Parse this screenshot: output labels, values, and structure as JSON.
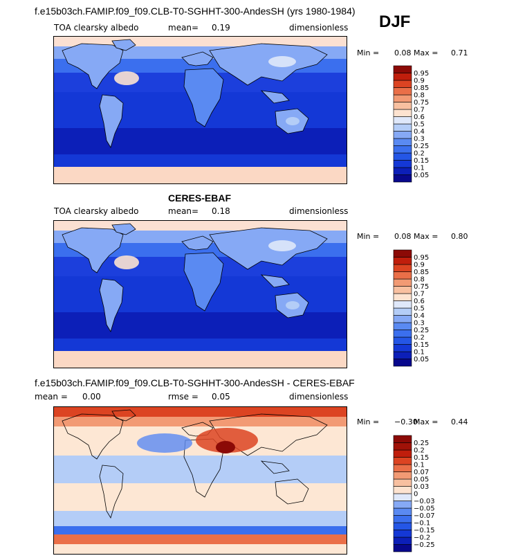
{
  "header": {
    "title": "f.e15b03ch.FAMIP.f09_f09.CLB-T0-SGHHT-300-AndesSH (yrs 1980-1984)",
    "season": "DJF"
  },
  "panels": [
    {
      "title": "",
      "variable": "TOA clearsky albedo",
      "mean_label": "mean=",
      "mean_value": "0.19",
      "units": "dimensionless",
      "min_label": "Min =",
      "min_value": "0.08",
      "max_label": "Max =",
      "max_value": "0.71"
    },
    {
      "title": "CERES-EBAF",
      "variable": "TOA clearsky albedo",
      "mean_label": "mean=",
      "mean_value": "0.18",
      "units": "dimensionless",
      "min_label": "Min =",
      "min_value": "0.08",
      "max_label": "Max =",
      "max_value": "0.80"
    },
    {
      "title": "f.e15b03ch.FAMIP.f09_f09.CLB-T0-SGHHT-300-AndesSH - CERES-EBAF",
      "mean_label": "mean =",
      "mean_value": "0.00",
      "rmse_label": "rmse =",
      "rmse_value": "0.05",
      "units": "dimensionless",
      "min_label": "Min =",
      "min_value": "−0.30",
      "max_label": "Max =",
      "max_value": "0.44"
    }
  ],
  "chart_data": [
    {
      "type": "heatmap",
      "title": "TOA clearsky albedo",
      "units": "dimensionless",
      "mean": 0.19,
      "min": 0.08,
      "max": 0.71,
      "colorbar": {
        "levels": [
          "0.05",
          "0.1",
          "0.15",
          "0.2",
          "0.25",
          "0.3",
          "0.4",
          "0.5",
          "0.6",
          "0.7",
          "0.75",
          "0.8",
          "0.85",
          "0.9",
          "0.95"
        ],
        "colors": [
          "#08088c",
          "#0c1fb8",
          "#1438d6",
          "#2456e6",
          "#3b6fee",
          "#5a8af2",
          "#86a9f5",
          "#b4cdf7",
          "#dfe8fa",
          "#fde3d0",
          "#f8c0a0",
          "#f29a74",
          "#ea6f48",
          "#dc4422",
          "#c01e0c",
          "#8c0a06"
        ]
      }
    },
    {
      "type": "heatmap",
      "title": "CERES-EBAF",
      "units": "dimensionless",
      "mean": 0.18,
      "min": 0.08,
      "max": 0.8,
      "colorbar": {
        "levels": [
          "0.05",
          "0.1",
          "0.15",
          "0.2",
          "0.25",
          "0.3",
          "0.4",
          "0.5",
          "0.6",
          "0.7",
          "0.75",
          "0.8",
          "0.85",
          "0.9",
          "0.95"
        ],
        "colors": [
          "#08088c",
          "#0c1fb8",
          "#1438d6",
          "#2456e6",
          "#3b6fee",
          "#5a8af2",
          "#86a9f5",
          "#b4cdf7",
          "#dfe8fa",
          "#fde3d0",
          "#f8c0a0",
          "#f29a74",
          "#ea6f48",
          "#dc4422",
          "#c01e0c",
          "#8c0a06"
        ]
      }
    },
    {
      "type": "heatmap",
      "title": "f.e15b03ch.FAMIP.f09_f09.CLB-T0-SGHHT-300-AndesSH - CERES-EBAF",
      "units": "dimensionless",
      "mean": 0.0,
      "rmse": 0.05,
      "min": -0.3,
      "max": 0.44,
      "colorbar": {
        "levels": [
          "−0.25",
          "−0.2",
          "−0.15",
          "−0.1",
          "−0.07",
          "−0.05",
          "−0.03",
          "0",
          "0.03",
          "0.05",
          "0.07",
          "0.1",
          "0.15",
          "0.2",
          "0.25"
        ],
        "colors": [
          "#08088c",
          "#0c1fb8",
          "#1438d6",
          "#2456e6",
          "#3b6fee",
          "#5a8af2",
          "#86a9f5",
          "#dfe8fa",
          "#fde3d0",
          "#f8c0a0",
          "#f29a74",
          "#ea6f48",
          "#dc4422",
          "#c01e0c",
          "#a01208",
          "#8c0a06"
        ]
      }
    }
  ]
}
